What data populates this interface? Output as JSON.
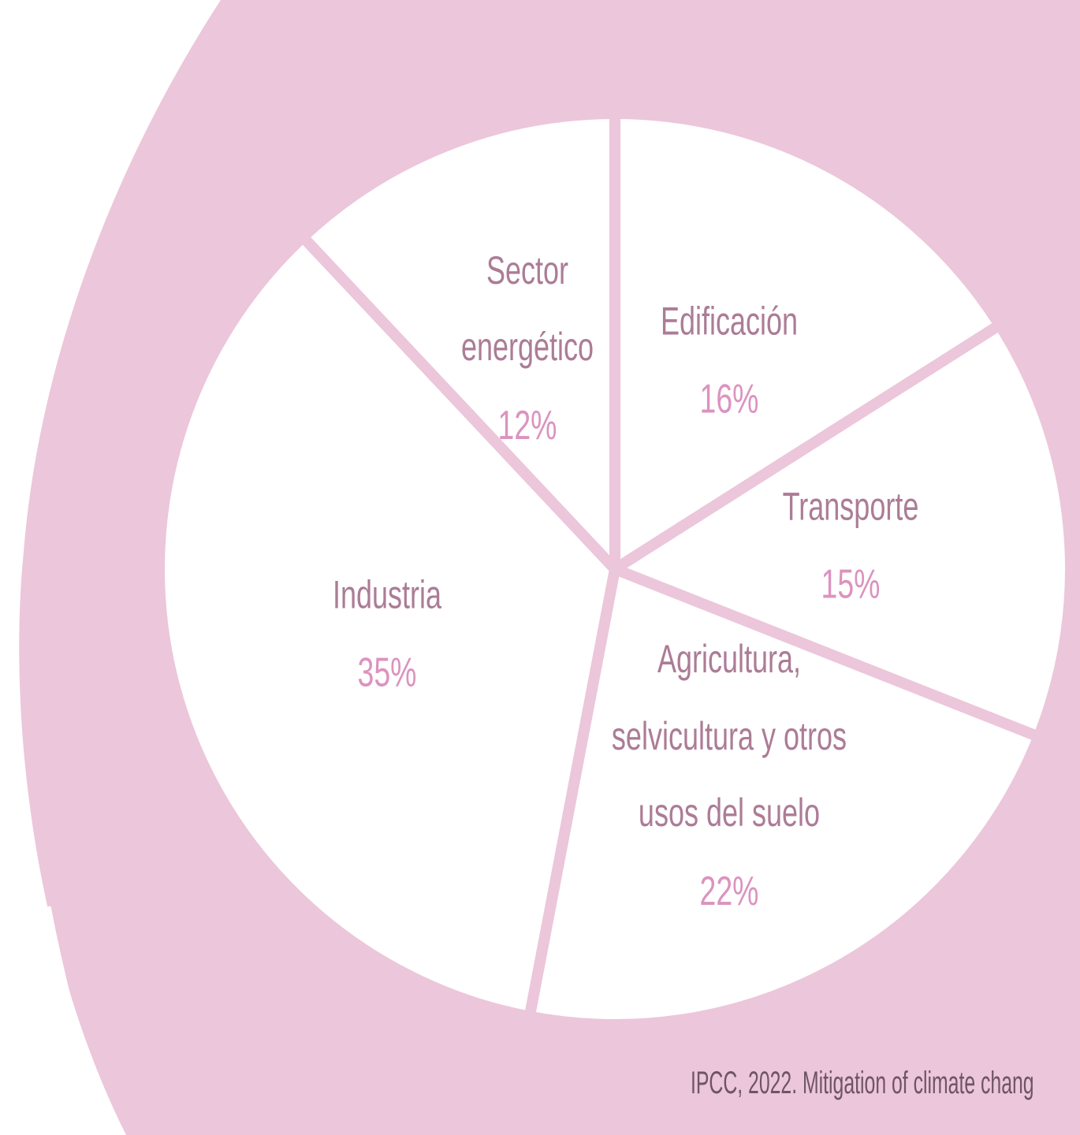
{
  "chart_data": {
    "type": "pie",
    "categories": [
      "Edificación",
      "Transporte",
      "Agricultura, selvicultura y otros usos del suelo",
      "Industria",
      "Sector energético"
    ],
    "values": [
      16,
      15,
      22,
      35,
      12
    ],
    "value_labels": [
      "16%",
      "15%",
      "22%",
      "35%",
      "12%"
    ],
    "color": "#ffffff",
    "source": "IPCC, 2022. Mitigation of climate chang"
  }
}
